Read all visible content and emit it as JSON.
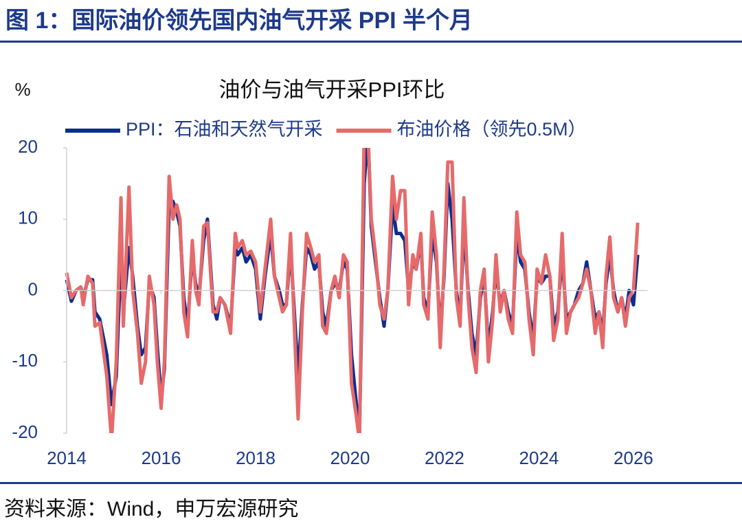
{
  "figure_title": "图 1：国际油价领先国内油气开采 PPI 半个月",
  "source": "资料来源：Wind，申万宏源研究",
  "chart_data": {
    "type": "line",
    "title": "油价与油气开采PPI环比",
    "y_label": "%",
    "x": [
      2014.0,
      2014.1,
      2014.2,
      2014.3,
      2014.35,
      2014.45,
      2014.55,
      2014.6,
      2014.7,
      2014.85,
      2014.95,
      2015.05,
      2015.15,
      2015.2,
      2015.32,
      2015.4,
      2015.5,
      2015.58,
      2015.67,
      2015.75,
      2015.85,
      2015.92,
      2016.0,
      2016.07,
      2016.17,
      2016.25,
      2016.33,
      2016.4,
      2016.48,
      2016.56,
      2016.66,
      2016.73,
      2016.8,
      2016.9,
      2016.98,
      2017.1,
      2017.18,
      2017.25,
      2017.35,
      2017.47,
      2017.57,
      2017.62,
      2017.72,
      2017.8,
      2017.9,
      2018.0,
      2018.1,
      2018.2,
      2018.32,
      2018.4,
      2018.5,
      2018.57,
      2018.65,
      2018.74,
      2018.82,
      2018.9,
      2018.99,
      2019.08,
      2019.17,
      2019.25,
      2019.34,
      2019.42,
      2019.5,
      2019.6,
      2019.68,
      2019.77,
      2019.86,
      2019.94,
      2020.03,
      2020.12,
      2020.2,
      2020.3,
      2020.38,
      2020.45,
      2020.54,
      2020.63,
      2020.72,
      2020.8,
      2020.9,
      2020.98,
      2021.07,
      2021.16,
      2021.24,
      2021.33,
      2021.4,
      2021.5,
      2021.56,
      2021.65,
      2021.74,
      2021.83,
      2021.91,
      2021.99,
      2022.07,
      2022.16,
      2022.25,
      2022.33,
      2022.41,
      2022.5,
      2022.58,
      2022.67,
      2022.76,
      2022.84,
      2022.93,
      2023.02,
      2023.09,
      2023.18,
      2023.26,
      2023.35,
      2023.44,
      2023.53,
      2023.61,
      2023.7,
      2023.79,
      2023.88,
      2023.96,
      2024.05,
      2024.14,
      2024.23,
      2024.31,
      2024.4,
      2024.49,
      2024.58,
      2024.67,
      2024.75,
      2024.84,
      2024.93,
      2025.01,
      2025.1,
      2025.19,
      2025.27,
      2025.35,
      2025.42,
      2025.5,
      2025.58,
      2025.67,
      2025.75,
      2025.83,
      2025.91,
      2026.0,
      2026.09
    ],
    "series": [
      {
        "name": "PPI：石油和天然气开采",
        "color": "#0b2d8f",
        "values": [
          1.5,
          -1.5,
          0,
          0.5,
          -1,
          1.5,
          1.5,
          -3,
          -4,
          -9,
          -16,
          -12,
          5,
          -3,
          6,
          2,
          -5,
          -9,
          -8,
          1,
          -1,
          -8,
          -15,
          -11,
          12,
          12.5,
          11,
          9,
          -1,
          -5,
          5,
          1,
          -1,
          7,
          10,
          -2,
          -4,
          -1,
          -2,
          -5,
          6,
          5,
          6,
          4,
          5,
          3,
          -4,
          2,
          8,
          2,
          0,
          -2,
          -2,
          6,
          -3,
          -12,
          -2,
          6,
          5,
          3,
          4,
          -3,
          -5,
          0,
          1,
          0,
          4,
          3,
          -9,
          -15,
          -20,
          15,
          22,
          9,
          4,
          -1,
          -5,
          0,
          12,
          8,
          8,
          7,
          0,
          4,
          3,
          7,
          -1,
          -3,
          8,
          4,
          -6,
          2,
          15,
          10,
          0,
          -4,
          9,
          0,
          -6,
          -9,
          -1,
          2,
          -8,
          -3,
          3,
          -2,
          0,
          -3,
          -5,
          8,
          4,
          3,
          -3,
          -7,
          2,
          1,
          2,
          2,
          -5,
          -3,
          5,
          -4,
          -3,
          -2,
          0,
          1,
          4,
          0,
          -4,
          -3,
          -6,
          1,
          5,
          0,
          -3,
          -1,
          -4,
          0,
          -2,
          5
        ]
      },
      {
        "name": "布油价格（领先0.5M）",
        "color": "#e66a6a",
        "values": [
          2.5,
          -1,
          0,
          0.5,
          -2,
          2,
          1,
          -5,
          -4.5,
          -12,
          -21,
          -10,
          13,
          -5,
          14.5,
          0,
          -6,
          -13,
          -10,
          2,
          -2,
          -10,
          -16.5,
          -10,
          16,
          10,
          12,
          10,
          -3,
          -6.5,
          7,
          0,
          -2,
          9,
          9.5,
          -3,
          -3,
          -1,
          -2,
          -6,
          8,
          6,
          7,
          5,
          5.5,
          4,
          -3,
          3,
          10,
          2,
          -1,
          -3,
          -2,
          8,
          -5,
          -18,
          -3,
          8,
          6,
          4,
          5,
          -5,
          -6,
          0,
          2,
          -1,
          5,
          4,
          -13,
          -17,
          -21,
          22,
          22,
          10,
          5,
          -2,
          -4,
          0,
          16,
          10,
          14,
          14,
          -2,
          5,
          3,
          8,
          -2,
          -4,
          11,
          5,
          -8,
          3,
          18,
          18,
          -1,
          -5,
          13,
          -1,
          -8,
          -11.5,
          0,
          3,
          -10,
          -4,
          5,
          -3,
          0,
          -4,
          -6,
          11,
          5,
          4,
          -4,
          -9,
          3,
          1,
          5,
          2,
          -7,
          -4,
          8,
          -6,
          -3,
          -2,
          -1,
          1,
          3,
          0,
          -6,
          -3,
          -8,
          2,
          7.5,
          -1,
          -3,
          -1,
          -5,
          -1,
          0,
          9.5
        ]
      }
    ],
    "xlim": [
      2014,
      2026.3
    ],
    "xticks": [
      2014,
      2016,
      2018,
      2020,
      2022,
      2024,
      2026
    ],
    "ylim": [
      -20,
      20
    ],
    "yticks": [
      -20,
      -10,
      0,
      10,
      20
    ],
    "legend": "top"
  }
}
